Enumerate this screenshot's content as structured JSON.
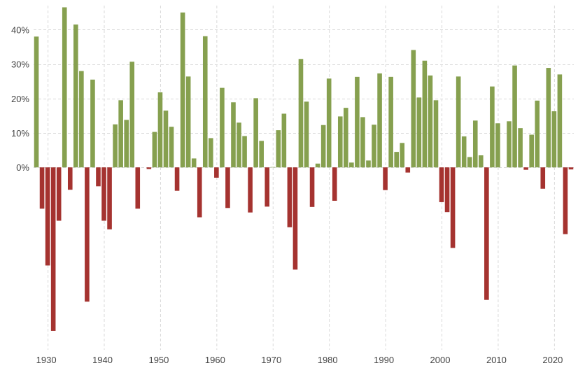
{
  "chart_data": {
    "type": "bar",
    "title": "",
    "xlabel": "",
    "ylabel": "",
    "x_ticks": [
      "1930",
      "1940",
      "1950",
      "1960",
      "1970",
      "1980",
      "1990",
      "2000",
      "2010",
      "2020"
    ],
    "y_ticks": [
      "40%",
      "30%",
      "20%",
      "10%",
      "0%"
    ],
    "y_tick_values": [
      40,
      30,
      20,
      10,
      0
    ],
    "ylim": [
      -53,
      47
    ],
    "xlim": [
      1927.5,
      2023.5
    ],
    "grid": true,
    "colors": {
      "positive": "#86a04f",
      "negative": "#a53330"
    },
    "years": [
      1928,
      1929,
      1930,
      1931,
      1932,
      1933,
      1934,
      1935,
      1936,
      1937,
      1938,
      1939,
      1940,
      1941,
      1942,
      1943,
      1944,
      1945,
      1946,
      1947,
      1948,
      1949,
      1950,
      1951,
      1952,
      1953,
      1954,
      1955,
      1956,
      1957,
      1958,
      1959,
      1960,
      1961,
      1962,
      1963,
      1964,
      1965,
      1966,
      1967,
      1968,
      1969,
      1970,
      1971,
      1972,
      1973,
      1974,
      1975,
      1976,
      1977,
      1978,
      1979,
      1980,
      1981,
      1982,
      1983,
      1984,
      1985,
      1986,
      1987,
      1988,
      1989,
      1990,
      1991,
      1992,
      1993,
      1994,
      1995,
      1996,
      1997,
      1998,
      1999,
      2000,
      2001,
      2002,
      2003,
      2004,
      2005,
      2006,
      2007,
      2008,
      2009,
      2010,
      2011,
      2012,
      2013,
      2014,
      2015,
      2016,
      2017,
      2018,
      2019,
      2020,
      2021,
      2022,
      2023
    ],
    "values": [
      38,
      -12,
      -28.5,
      -47.5,
      -15.5,
      46.5,
      -6.5,
      41.5,
      28,
      -39,
      25.5,
      -5.5,
      -15.5,
      -18,
      12.5,
      19.5,
      13.8,
      30.7,
      -12,
      0,
      -0.5,
      10.3,
      21.8,
      16.5,
      11.8,
      -6.8,
      45,
      26.4,
      2.6,
      -14.5,
      38.1,
      8.5,
      -3,
      23.1,
      -11.8,
      18.9,
      13,
      9.1,
      -13.1,
      20.1,
      7.7,
      -11.4,
      0.1,
      10.8,
      15.6,
      -17.4,
      -29.7,
      31.5,
      19.1,
      -11.5,
      1.1,
      12.3,
      25.8,
      -9.7,
      14.8,
      17.3,
      1.4,
      26.3,
      14.6,
      2,
      12.4,
      27.3,
      -6.6,
      26.3,
      4.5,
      7.1,
      -1.5,
      34.1,
      20.3,
      31,
      26.7,
      19.5,
      -10.1,
      -13,
      -23.4,
      26.4,
      9,
      3,
      13.6,
      3.5,
      -38.5,
      23.5,
      12.8,
      0,
      13.4,
      29.6,
      11.4,
      -0.7,
      9.5,
      19.4,
      -6.2,
      28.9,
      16.3,
      27,
      -19.4,
      -0.6
    ]
  }
}
